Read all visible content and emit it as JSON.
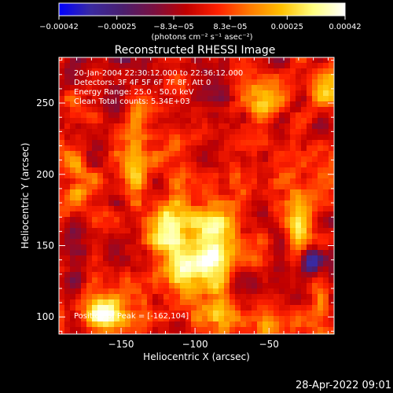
{
  "chart_data": {
    "type": "heatmap",
    "title": "Reconstructed RHESSI Image",
    "xlabel": "Heliocentric X (arcsec)",
    "ylabel": "Heliocentric Y (arcsec)",
    "xlim": [
      -192,
      -6
    ],
    "ylim": [
      88,
      282
    ],
    "x_ticks": [
      -150,
      -100,
      -50
    ],
    "y_ticks": [
      100,
      150,
      200,
      250
    ],
    "x_tick_labels": [
      "−150",
      "−100",
      "−50"
    ],
    "y_tick_labels": [
      "100",
      "150",
      "200",
      "250"
    ],
    "colorbar": {
      "min": -0.00042,
      "max": 0.00042,
      "tick_values": [
        -0.00042,
        -0.00025,
        -8.3e-05,
        8.3e-05,
        0.00025,
        0.00042
      ],
      "tick_labels": [
        "−0.00042",
        "−0.00025",
        "−8.3e−05",
        "8.3e−05",
        "0.00025",
        "0.00042"
      ],
      "unit_label": "(photons cm⁻² s⁻¹ asec⁻²)",
      "colormap_stops": [
        "#0000ff",
        "#3a2aa0",
        "#4a1f6e",
        "#7a1040",
        "#c00000",
        "#ff2000",
        "#ff7a00",
        "#ffc000",
        "#ffff80",
        "#ffffff"
      ]
    },
    "info_lines": [
      "20-Jan-2004 22:30:12.000 to 22:36:12.000",
      "Detectors: 3F 4F 5F 6F 7F 8F, Att 0",
      "Energy Range: 25.0 - 50.0 keV",
      "Clean     Total counts: 5.34E+03"
    ],
    "peak_label": "Position of Peak = [-162,104]",
    "peak": [
      -162,
      104
    ],
    "sources": [
      {
        "x": -118,
        "y": 165,
        "peak": 0.00036,
        "sx": 10,
        "sy": 14
      },
      {
        "x": -105,
        "y": 135,
        "peak": 0.0003,
        "sx": 14,
        "sy": 14
      },
      {
        "x": -86,
        "y": 155,
        "peak": 0.0003,
        "sx": 9,
        "sy": 20
      },
      {
        "x": -162,
        "y": 104,
        "peak": 0.00042,
        "sx": 9,
        "sy": 8
      },
      {
        "x": -83,
        "y": 103,
        "peak": 0.00038,
        "sx": 6,
        "sy": 10
      },
      {
        "x": -140,
        "y": 210,
        "peak": 0.00026,
        "sx": 6,
        "sy": 20
      },
      {
        "x": -30,
        "y": 166,
        "peak": 0.00028,
        "sx": 6,
        "sy": 14
      },
      {
        "x": -12,
        "y": 264,
        "peak": 0.0003,
        "sx": 8,
        "sy": 10
      },
      {
        "x": -55,
        "y": 252,
        "peak": 0.00022,
        "sx": 7,
        "sy": 8
      },
      {
        "x": -180,
        "y": 190,
        "peak": 0.0002,
        "sx": 6,
        "sy": 14
      },
      {
        "x": -130,
        "y": 248,
        "peak": 0.00016,
        "sx": 9,
        "sy": 6
      },
      {
        "x": -52,
        "y": 96,
        "peak": 0.00022,
        "sx": 8,
        "sy": 6
      },
      {
        "x": -15,
        "y": 110,
        "peak": 0.00024,
        "sx": 5,
        "sy": 14
      },
      {
        "x": -22,
        "y": 140,
        "peak": -0.0004,
        "sx": 5,
        "sy": 6
      }
    ]
  },
  "footer": {
    "timestamp": "28-Apr-2022 09:01"
  }
}
